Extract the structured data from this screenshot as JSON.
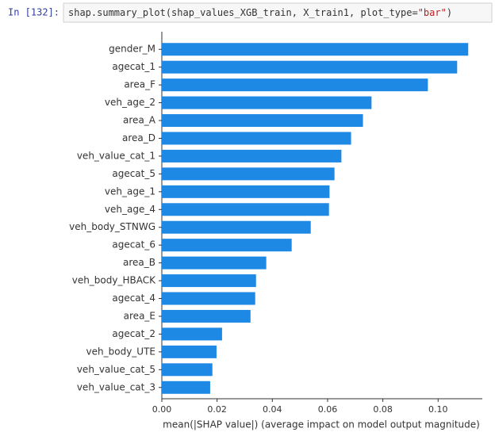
{
  "cell": {
    "prompt": "In [132]:",
    "code": [
      "shap.summary_plot(shap_values_XGB_train, X_train1, plot_type=",
      "\"bar\"",
      ")"
    ]
  },
  "chart_data": {
    "type": "barh",
    "xlabel": "mean(|SHAP value|) (average impact on model output magnitude)",
    "categories": [
      "gender_M",
      "agecat_1",
      "area_F",
      "veh_age_2",
      "area_A",
      "area_D",
      "veh_value_cat_1",
      "agecat_5",
      "veh_age_1",
      "veh_age_4",
      "veh_body_STNWG",
      "agecat_6",
      "area_B",
      "veh_body_HBACK",
      "agecat_4",
      "area_E",
      "agecat_2",
      "veh_body_UTE",
      "veh_value_cat_5",
      "veh_value_cat_3"
    ],
    "values": [
      0.1109,
      0.1069,
      0.0963,
      0.0759,
      0.0728,
      0.0685,
      0.065,
      0.0625,
      0.0607,
      0.0605,
      0.0539,
      0.047,
      0.0378,
      0.0341,
      0.0338,
      0.0321,
      0.0218,
      0.0198,
      0.0183,
      0.0175
    ],
    "color": "#1e88e5",
    "xlim": [
      0,
      0.116
    ],
    "xticks": [
      {
        "value": 0,
        "label": "0.00"
      },
      {
        "value": 0.02,
        "label": "0.02"
      },
      {
        "value": 0.04,
        "label": "0.04"
      },
      {
        "value": 0.06,
        "label": "0.06"
      },
      {
        "value": 0.08,
        "label": "0.08"
      },
      {
        "value": 0.1,
        "label": "0.10"
      }
    ]
  }
}
